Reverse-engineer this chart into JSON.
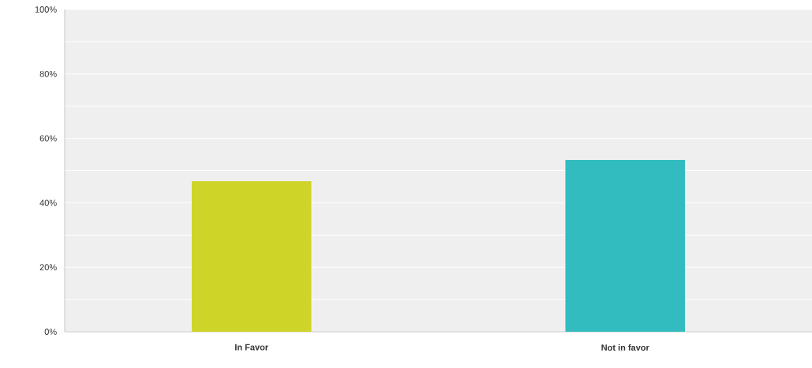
{
  "chart_data": {
    "type": "bar",
    "categories": [
      "In Favor",
      "Not in favor"
    ],
    "values": [
      46.7,
      53.3
    ],
    "colors": [
      "#cfd428",
      "#33bcbf"
    ],
    "ylim": [
      0,
      100
    ],
    "yticks": [
      {
        "value": 0,
        "label": "0%"
      },
      {
        "value": 10,
        "label": null
      },
      {
        "value": 20,
        "label": "20%"
      },
      {
        "value": 30,
        "label": null
      },
      {
        "value": 40,
        "label": "40%"
      },
      {
        "value": 50,
        "label": null
      },
      {
        "value": 60,
        "label": "60%"
      },
      {
        "value": 70,
        "label": null
      },
      {
        "value": 80,
        "label": "80%"
      },
      {
        "value": 90,
        "label": null
      },
      {
        "value": 100,
        "label": "100%"
      }
    ],
    "grid": "y"
  }
}
